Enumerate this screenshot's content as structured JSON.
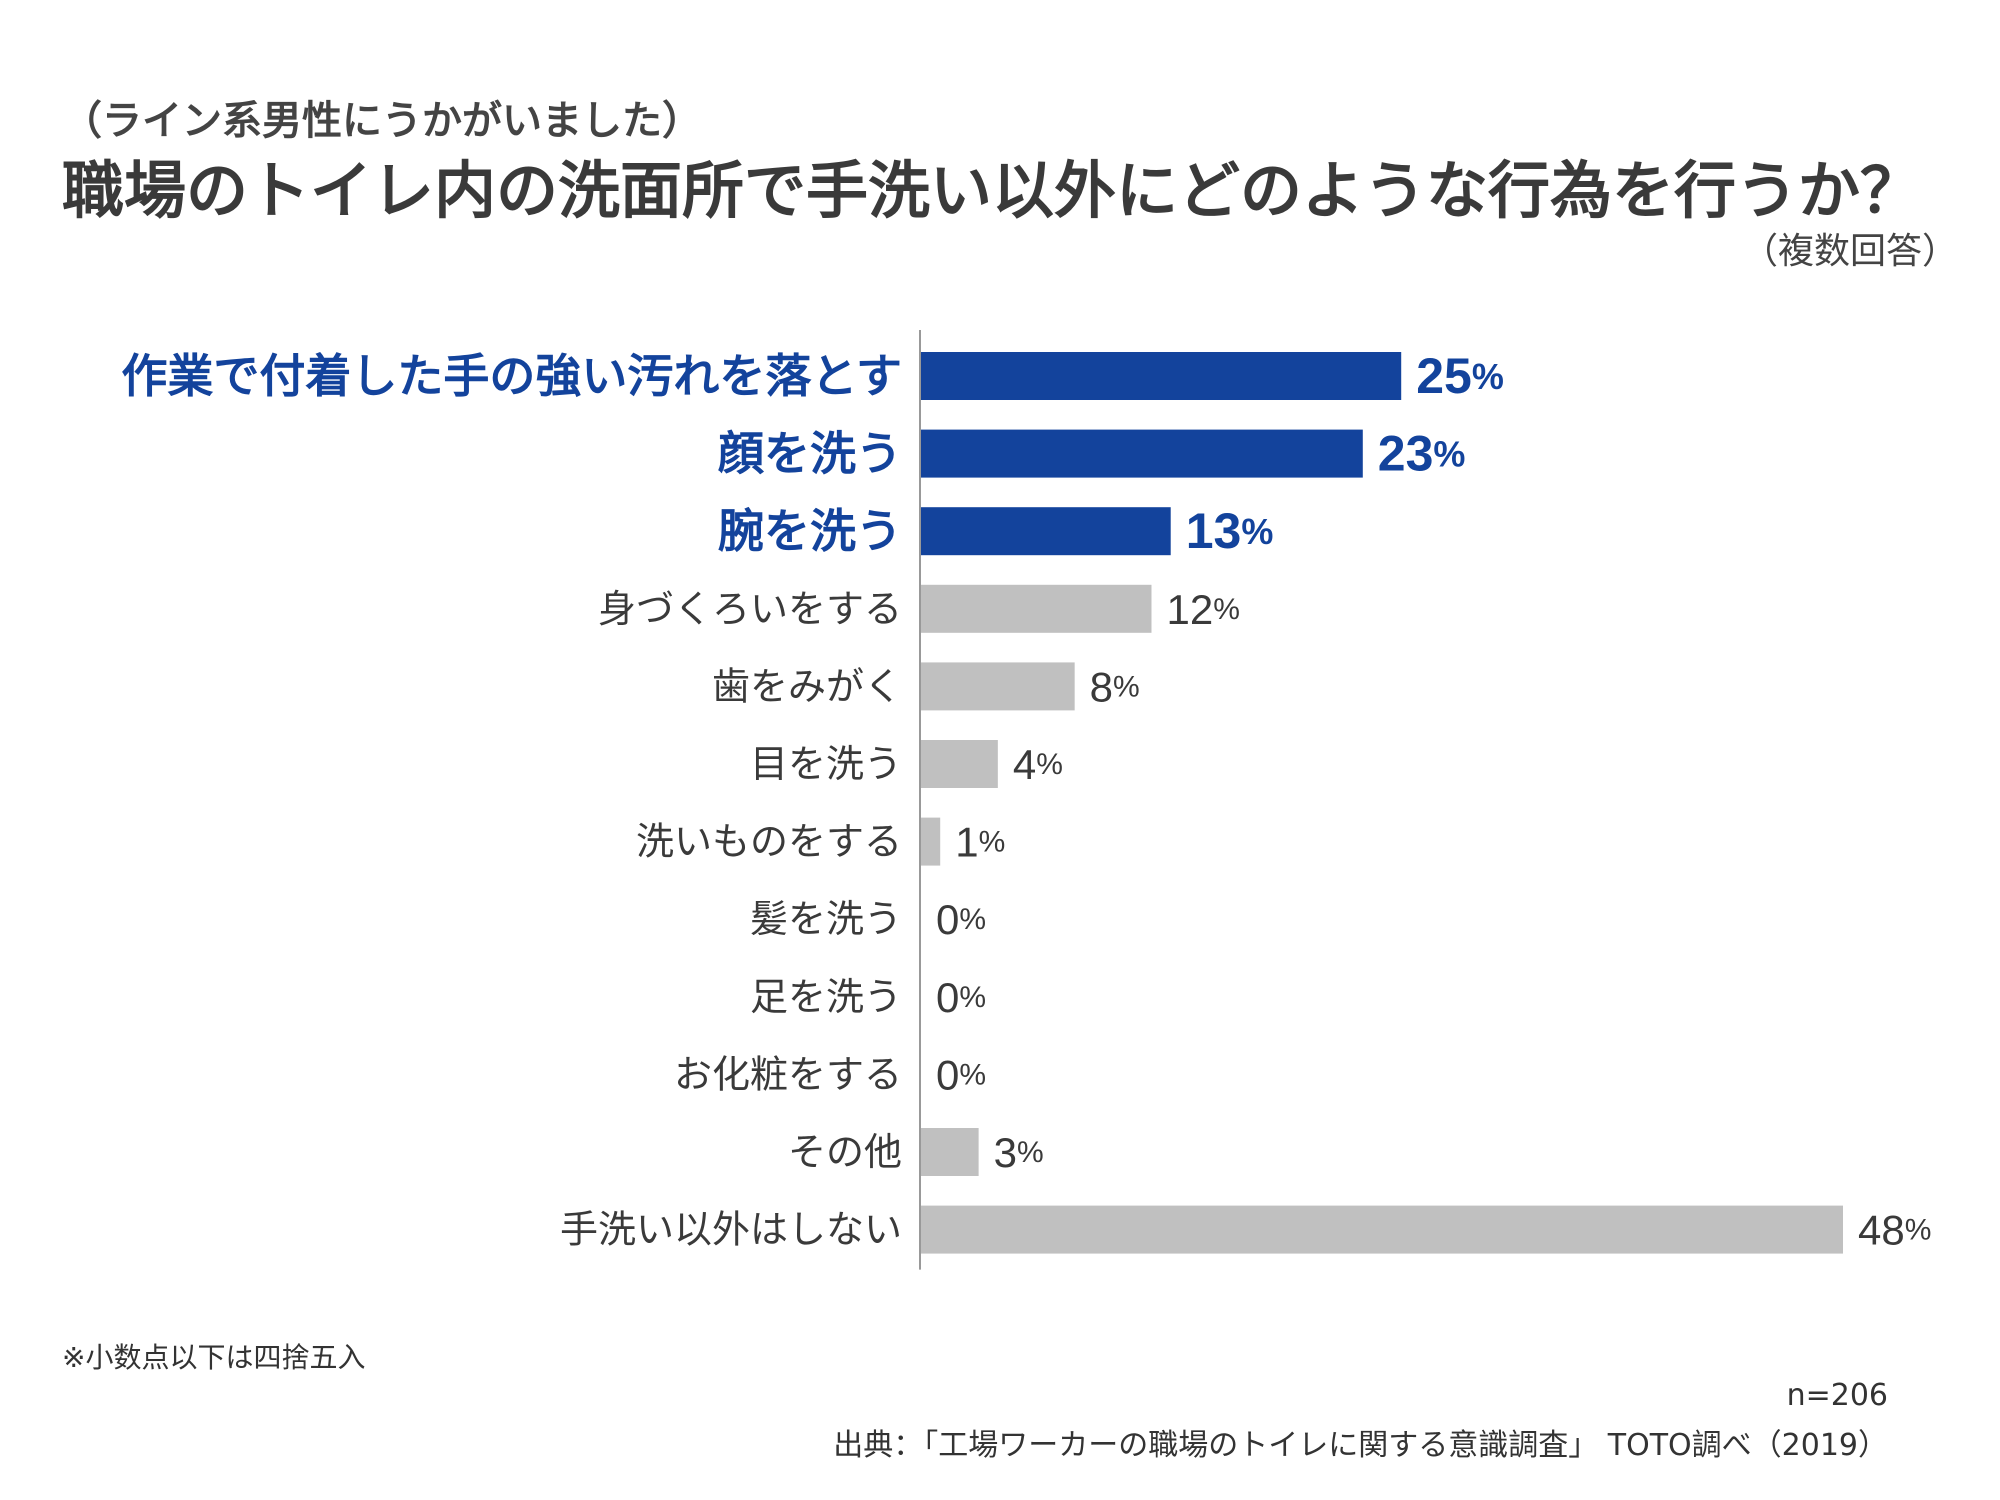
{
  "header": {
    "subtitle": "（ライン系男性にうかがいました）",
    "title": "職場のトイレ内の洗面所で手洗い以外にどのような行為を行うか？",
    "note": "（複数回答）"
  },
  "colors": {
    "highlight": "#13439c",
    "bar": "#c0c0c0",
    "text": "#3a3a3a",
    "axis": "#999999"
  },
  "chart_data": {
    "type": "bar",
    "orientation": "horizontal",
    "categories": [
      "作業で付着した手の強い汚れを落とす",
      "顔を洗う",
      "腕を洗う",
      "身づくろいをする",
      "歯をみがく",
      "目を洗う",
      "洗いものをする",
      "髪を洗う",
      "足を洗う",
      "お化粧をする",
      "その他",
      "手洗い以外はしない"
    ],
    "values": [
      25,
      23,
      13,
      12,
      8,
      4,
      1,
      0,
      0,
      0,
      3,
      48
    ],
    "unit": "%",
    "highlighted": [
      true,
      true,
      true,
      false,
      false,
      false,
      false,
      false,
      false,
      false,
      false,
      false
    ],
    "xlim": [
      0,
      48
    ]
  },
  "footer": {
    "footnote": "※小数点以下は四捨五入",
    "sample": "n=206",
    "source": "出典：「工場ワーカーの職場のトイレに関する意識調査」 TOTO調べ（2019）"
  }
}
